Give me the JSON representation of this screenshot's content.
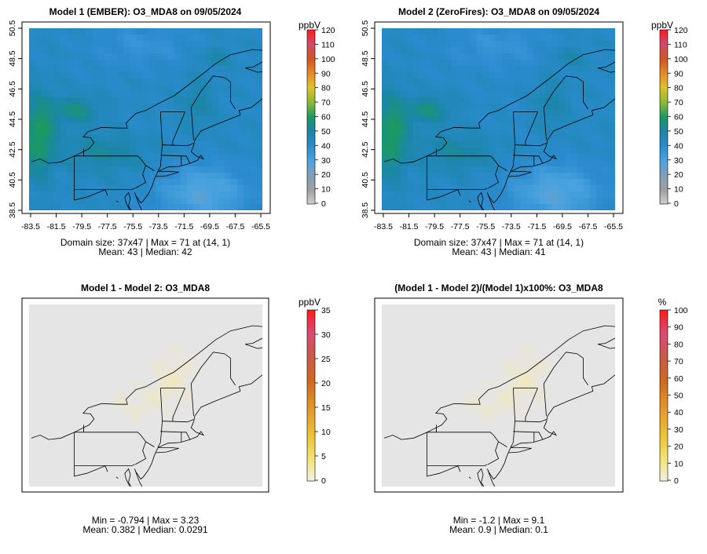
{
  "chart_data": [
    {
      "type": "heatmap",
      "title": "Model 1 (EMBER): O3_MDA8 on 09/05/2024",
      "x_ticks": [
        "-83.5",
        "-81.5",
        "-79.5",
        "-77.5",
        "-75.5",
        "-73.5",
        "-71.5",
        "-69.5",
        "-67.5",
        "-65.5"
      ],
      "y_ticks": [
        "38.5",
        "40.5",
        "42.5",
        "44.5",
        "46.5",
        "48.5",
        "50.5"
      ],
      "xlim": [
        -84.2,
        -65.2
      ],
      "ylim": [
        38.3,
        50.7
      ],
      "colorbar": {
        "unit": "ppbV",
        "range": [
          0,
          120
        ],
        "ticks": [
          "0",
          "10",
          "20",
          "30",
          "40",
          "50",
          "60",
          "70",
          "80",
          "90",
          "100",
          "110",
          "120"
        ],
        "palette": "conc"
      },
      "stats_line1": "Domain size: 37x47 | Max = 71 at (14, 1)",
      "stats_line2": "Mean: 43 |  Median: 42",
      "summary": {
        "grid": [
          37,
          47
        ],
        "max": 71,
        "max_at": [
          14,
          1
        ],
        "mean": 43,
        "median": 42
      },
      "field": "ember"
    },
    {
      "type": "heatmap",
      "title": "Model 2 (ZeroFires): O3_MDA8 on 09/05/2024",
      "x_ticks": [
        "-83.5",
        "-81.5",
        "-79.5",
        "-77.5",
        "-75.5",
        "-73.5",
        "-71.5",
        "-69.5",
        "-67.5",
        "-65.5"
      ],
      "y_ticks": [
        "38.5",
        "40.5",
        "42.5",
        "44.5",
        "46.5",
        "48.5",
        "50.5"
      ],
      "xlim": [
        -84.2,
        -65.2
      ],
      "ylim": [
        38.3,
        50.7
      ],
      "colorbar": {
        "unit": "ppbV",
        "range": [
          0,
          120
        ],
        "ticks": [
          "0",
          "10",
          "20",
          "30",
          "40",
          "50",
          "60",
          "70",
          "80",
          "90",
          "100",
          "110",
          "120"
        ],
        "palette": "conc"
      },
      "stats_line1": "Domain size: 37x47 | Max = 71 at (14, 1)",
      "stats_line2": "Mean: 43 |  Median: 41",
      "summary": {
        "grid": [
          37,
          47
        ],
        "max": 71,
        "max_at": [
          14,
          1
        ],
        "mean": 43,
        "median": 41
      },
      "field": "zerofires"
    },
    {
      "type": "heatmap",
      "title": "Model 1 - Model 2: O3_MDA8",
      "colorbar": {
        "unit": "ppbV",
        "range": [
          0,
          35
        ],
        "ticks": [
          "0",
          "5",
          "10",
          "15",
          "20",
          "25",
          "30",
          "35"
        ],
        "palette": "diff"
      },
      "stats_line1": "Min = -0.794 | Max = 3.23",
      "stats_line2": "Mean: 0.382 |  Median: 0.0291",
      "summary": {
        "min": -0.794,
        "max": 3.23,
        "mean": 0.382,
        "median": 0.0291
      },
      "field": "diff"
    },
    {
      "type": "heatmap",
      "title": "(Model 1 - Model 2)/(Model 1)x100%: O3_MDA8",
      "colorbar": {
        "unit": "%",
        "range": [
          0,
          100
        ],
        "ticks": [
          "0",
          "10",
          "20",
          "30",
          "40",
          "50",
          "60",
          "70",
          "80",
          "90",
          "100"
        ],
        "palette": "diff"
      },
      "stats_line1": "Min = -1.2 | Max = 9.1",
      "stats_line2": "Mean: 0.9 |  Median: 0.1",
      "summary": {
        "min": -1.2,
        "max": 9.1,
        "mean": 0.9,
        "median": 0.1
      },
      "field": "pct"
    }
  ],
  "colors": {
    "background_grey": "#e5e5e5",
    "map_lines": "#000000",
    "conc_scale": [
      "#bdbdbd",
      "#9a9a9a",
      "#4aa3df",
      "#2b83c6",
      "#1f7fbf",
      "#1a9a73",
      "#5fb14a",
      "#c8c02a",
      "#e8a030",
      "#d9531e",
      "#d53d5a",
      "#e83e8c",
      "#ff1a1a"
    ],
    "diff_scale": [
      "#f4f1d8",
      "#f3e58a",
      "#f0c838",
      "#e3a32a",
      "#d4731f",
      "#c85a3a",
      "#d2506e",
      "#e43a62",
      "#ff1a1a"
    ]
  }
}
